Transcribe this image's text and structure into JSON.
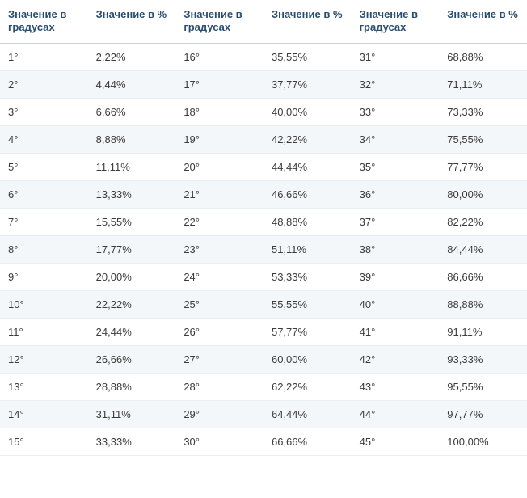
{
  "table": {
    "type": "table",
    "background_color": "#ffffff",
    "stripe_color": "#f4f7fa",
    "header_text_color": "#2a4d6e",
    "body_text_color": "#3b3b3b",
    "header_border_color": "#c8d4df",
    "row_border_color": "#e9eef3",
    "header_fontsize": 13,
    "body_fontsize": 13,
    "columns": [
      "Значение в градусах",
      "Значение в %",
      "Значение в градусах",
      "Значение в %",
      "Значение в градусах",
      "Значение в %"
    ],
    "rows": [
      [
        "1°",
        "2,22%",
        "16°",
        "35,55%",
        "31°",
        "68,88%"
      ],
      [
        "2°",
        "4,44%",
        "17°",
        "37,77%",
        "32°",
        "71,11%"
      ],
      [
        "3°",
        "6,66%",
        "18°",
        "40,00%",
        "33°",
        "73,33%"
      ],
      [
        "4°",
        "8,88%",
        "19°",
        "42,22%",
        "34°",
        "75,55%"
      ],
      [
        "5°",
        "11,11%",
        "20°",
        "44,44%",
        "35°",
        "77,77%"
      ],
      [
        "6°",
        "13,33%",
        "21°",
        "46,66%",
        "36°",
        "80,00%"
      ],
      [
        "7°",
        "15,55%",
        "22°",
        "48,88%",
        "37°",
        "82,22%"
      ],
      [
        "8°",
        "17,77%",
        "23°",
        "51,11%",
        "38°",
        "84,44%"
      ],
      [
        "9°",
        "20,00%",
        "24°",
        "53,33%",
        "39°",
        "86,66%"
      ],
      [
        "10°",
        "22,22%",
        "25°",
        "55,55%",
        "40°",
        "88,88%"
      ],
      [
        "11°",
        "24,44%",
        "26°",
        "57,77%",
        "41°",
        "91,11%"
      ],
      [
        "12°",
        "26,66%",
        "27°",
        "60,00%",
        "42°",
        "93,33%"
      ],
      [
        "13°",
        "28,88%",
        "28°",
        "62,22%",
        "43°",
        "95,55%"
      ],
      [
        "14°",
        "31,11%",
        "29°",
        "64,44%",
        "44°",
        "97,77%"
      ],
      [
        "15°",
        "33,33%",
        "30°",
        "66,66%",
        "45°",
        "100,00%"
      ]
    ]
  }
}
